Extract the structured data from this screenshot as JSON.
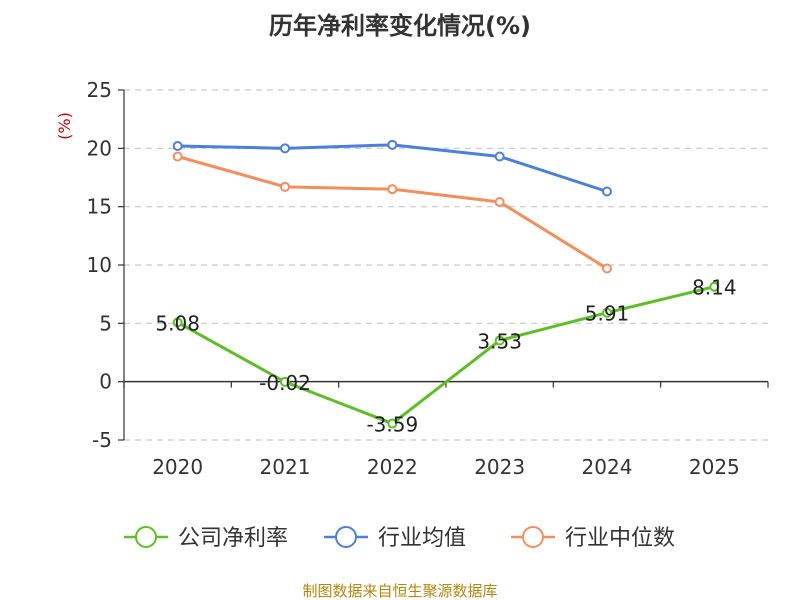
{
  "chart_data": {
    "type": "line",
    "title": "历年净利率变化情况(%)",
    "ylabel": "(%)",
    "categories": [
      "2020",
      "2021",
      "2022",
      "2023",
      "2024",
      "2025"
    ],
    "ylim": [
      -5,
      25
    ],
    "yticks": [
      -5,
      0,
      5,
      10,
      15,
      20,
      25
    ],
    "grid": true,
    "legend_position": "bottom",
    "series": [
      {
        "name": "公司净利率",
        "color": "#5dbf24",
        "values": [
          5.08,
          -0.02,
          -3.59,
          3.53,
          5.91,
          8.14
        ],
        "labels": [
          "5.08",
          "-0.02",
          "-3.59",
          "3.53",
          "5.91",
          "8.14"
        ]
      },
      {
        "name": "行业均值",
        "color": "#4a7fdc",
        "values": [
          20.2,
          20.0,
          20.3,
          19.3,
          16.3,
          null
        ]
      },
      {
        "name": "行业中位数",
        "color": "#f58d5a",
        "values": [
          19.3,
          16.7,
          16.5,
          15.4,
          9.7,
          null
        ]
      }
    ],
    "source": "制图数据来自恒生聚源数据库"
  }
}
